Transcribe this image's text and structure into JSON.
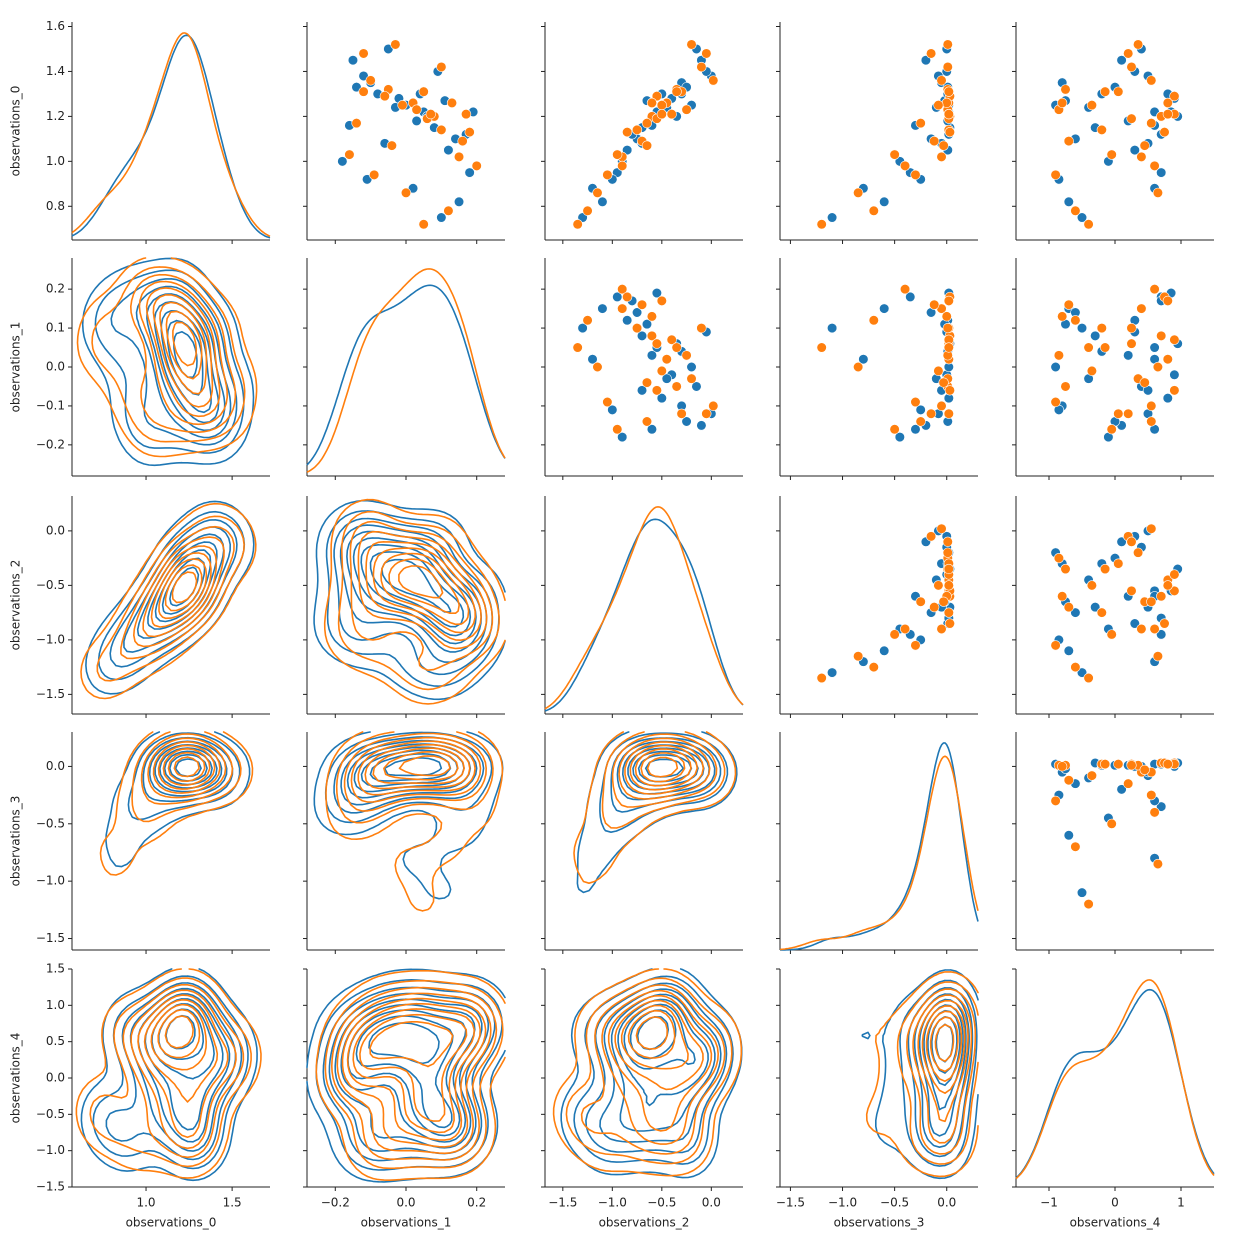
{
  "chart_data": {
    "type": "pair",
    "variables": [
      {
        "name": "observations_0",
        "xlim": [
          0.57,
          1.72
        ],
        "ylim": [
          0.65,
          1.62
        ],
        "xticks": [
          {
            "value": 1,
            "label": "1.0"
          },
          1.5
        ],
        "yticks": [
          0.8,
          {
            "value": 1,
            "label": "1.0"
          },
          1.2,
          1.4,
          1.6
        ]
      },
      {
        "name": "observations_1",
        "xlim": [
          -0.28,
          0.28
        ],
        "ylim": [
          -0.28,
          0.28
        ],
        "xticks": [
          {
            "value": -0.2,
            "label": "−0.2"
          },
          {
            "value": 0,
            "label": "0.0"
          },
          0.2
        ],
        "yticks": [
          {
            "value": -0.2,
            "label": "−0.2"
          },
          {
            "value": -0.1,
            "label": "−0.1"
          },
          {
            "value": 0,
            "label": "0.0"
          },
          0.1,
          0.2
        ]
      },
      {
        "name": "observations_2",
        "xlim": [
          -1.68,
          0.32
        ],
        "ylim": [
          -1.68,
          0.32
        ],
        "xticks": [
          {
            "value": -1.5,
            "label": "−1.5"
          },
          {
            "value": -1,
            "label": "−1.0"
          },
          {
            "value": -0.5,
            "label": "−0.5"
          },
          {
            "value": 0,
            "label": "0.0"
          }
        ],
        "yticks": [
          {
            "value": -1.5,
            "label": "−1.5"
          },
          {
            "value": -1,
            "label": "−1.0"
          },
          {
            "value": -0.5,
            "label": "−0.5"
          },
          {
            "value": 0,
            "label": "0.0"
          }
        ]
      },
      {
        "name": "observations_3",
        "xlim": [
          -1.6,
          0.3
        ],
        "ylim": [
          -1.6,
          0.3
        ],
        "xticks": [
          {
            "value": -1.5,
            "label": "−1.5"
          },
          {
            "value": -1,
            "label": "−1.0"
          },
          {
            "value": -0.5,
            "label": "−0.5"
          },
          {
            "value": 0,
            "label": "0.0"
          }
        ],
        "yticks": [
          {
            "value": -1.5,
            "label": "−1.5"
          },
          {
            "value": -1,
            "label": "−1.0"
          },
          {
            "value": -0.5,
            "label": "−0.5"
          },
          {
            "value": 0,
            "label": "0.0"
          }
        ]
      },
      {
        "name": "observations_4",
        "xlim": [
          -1.5,
          1.5
        ],
        "ylim": [
          -1.5,
          1.5
        ],
        "xticks": [
          {
            "value": -1,
            "label": "−1"
          },
          0,
          1
        ],
        "yticks": [
          {
            "value": -1.5,
            "label": "−1.5"
          },
          {
            "value": -1,
            "label": "−1.0"
          },
          {
            "value": -0.5,
            "label": "−0.5"
          },
          {
            "value": 0,
            "label": "0.0"
          },
          0.5,
          {
            "value": 1,
            "label": "1.0"
          },
          1.5
        ]
      }
    ],
    "series": [
      {
        "color": "#1f77b4",
        "values": [
          [
            1.22,
            0.05,
            -0.55,
            0.02,
            0.6
          ],
          [
            1.35,
            -0.1,
            -0.3,
            -0.05,
            -0.8
          ],
          [
            1.05,
            0.12,
            -0.85,
            0.01,
            0.3
          ],
          [
            0.82,
            0.15,
            -1.1,
            -0.6,
            -0.7
          ],
          [
            1.28,
            -0.02,
            -0.4,
            0,
            0.9
          ],
          [
            1.45,
            -0.15,
            -0.1,
            -0.2,
            0.1
          ],
          [
            1.15,
            0.08,
            -0.7,
            0.03,
            -0.3
          ],
          [
            0.95,
            0.18,
            -0.95,
            -0.35,
            0.7
          ],
          [
            1.25,
            0,
            -0.2,
            0.02,
            -0.9
          ],
          [
            1.38,
            -0.12,
            0,
            -0.08,
            0.5
          ],
          [
            0.75,
            0.1,
            -1.3,
            -1.1,
            -0.5
          ],
          [
            1.18,
            0.03,
            -0.6,
            0.01,
            0.2
          ],
          [
            1.3,
            -0.08,
            -0.5,
            0.02,
            0.8
          ],
          [
            1.1,
            0.14,
            -0.75,
            -0.15,
            -0.6
          ],
          [
            1.5,
            -0.05,
            -0.15,
            0,
            0.4
          ],
          [
            1,
            -0.18,
            -0.9,
            -0.45,
            -0.1
          ],
          [
            1.2,
            0.06,
            -0.35,
            0.03,
            0.95
          ],
          [
            1.27,
            0.11,
            -0.65,
            -0.02,
            -0.75
          ],
          [
            0.88,
            0.02,
            -1.2,
            -0.8,
            0.6
          ],
          [
            1.33,
            -0.14,
            -0.25,
            0.01,
            0
          ],
          [
            1.12,
            0.17,
            -0.8,
            0.02,
            0.7
          ],
          [
            1.24,
            -0.03,
            -0.45,
            -0.1,
            -0.4
          ],
          [
            1.4,
            0.09,
            -0.05,
            0,
            0.3
          ],
          [
            0.92,
            -0.11,
            -1,
            -0.25,
            -0.85
          ],
          [
            1.22,
            0.19,
            -0.55,
            0.02,
            0.85
          ],
          [
            1.08,
            -0.06,
            -0.7,
            -0.05,
            0.5
          ],
          [
            1.3,
            0.04,
            -0.3,
            0.01,
            -0.2
          ],
          [
            1.16,
            -0.16,
            -0.6,
            -0.3,
            0.6
          ]
        ]
      },
      {
        "color": "#ff7f0e",
        "values": [
          [
            1.2,
            0.08,
            -0.6,
            0.03,
            0.7
          ],
          [
            1.32,
            -0.05,
            -0.35,
            0.01,
            -0.75
          ],
          [
            1.02,
            0.15,
            -0.9,
            -0.05,
            0.4
          ],
          [
            0.78,
            0.12,
            -1.25,
            -0.7,
            -0.6
          ],
          [
            1.26,
            0.02,
            -0.45,
            0.02,
            0.8
          ],
          [
            1.48,
            -0.12,
            -0.05,
            -0.15,
            0.2
          ],
          [
            1.14,
            0.1,
            -0.75,
            0.02,
            -0.2
          ],
          [
            0.98,
            0.2,
            -0.9,
            -0.4,
            0.6
          ],
          [
            1.23,
            0.03,
            -0.25,
            0.01,
            -0.85
          ],
          [
            1.36,
            -0.1,
            0.02,
            -0.05,
            0.55
          ],
          [
            0.72,
            0.05,
            -1.35,
            -1.2,
            -0.4
          ],
          [
            1.19,
            0.06,
            -0.55,
            0.02,
            0.25
          ],
          [
            1.29,
            -0.06,
            -0.55,
            0.03,
            0.9
          ],
          [
            1.09,
            0.16,
            -0.7,
            -0.12,
            -0.7
          ],
          [
            1.52,
            -0.03,
            -0.2,
            0.01,
            0.35
          ],
          [
            1.03,
            -0.16,
            -0.95,
            -0.5,
            -0.05
          ],
          [
            1.21,
            0.07,
            -0.4,
            0.02,
            0.9
          ],
          [
            1.26,
            0.13,
            -0.6,
            0,
            -0.8
          ],
          [
            0.86,
            0,
            -1.15,
            -0.85,
            0.65
          ],
          [
            1.31,
            -0.12,
            -0.3,
            0.02,
            0.05
          ],
          [
            1.13,
            0.18,
            -0.85,
            0.03,
            0.75
          ],
          [
            1.25,
            -0.01,
            -0.5,
            -0.08,
            -0.35
          ],
          [
            1.42,
            0.1,
            -0.1,
            0.01,
            0.25
          ],
          [
            0.94,
            -0.09,
            -1.05,
            -0.3,
            -0.9
          ],
          [
            1.21,
            0.17,
            -0.5,
            0.02,
            0.8
          ],
          [
            1.07,
            -0.04,
            -0.65,
            -0.03,
            0.45
          ],
          [
            1.31,
            0.05,
            -0.35,
            0.02,
            -0.15
          ],
          [
            1.17,
            -0.14,
            -0.65,
            -0.25,
            0.55
          ]
        ]
      }
    ]
  }
}
